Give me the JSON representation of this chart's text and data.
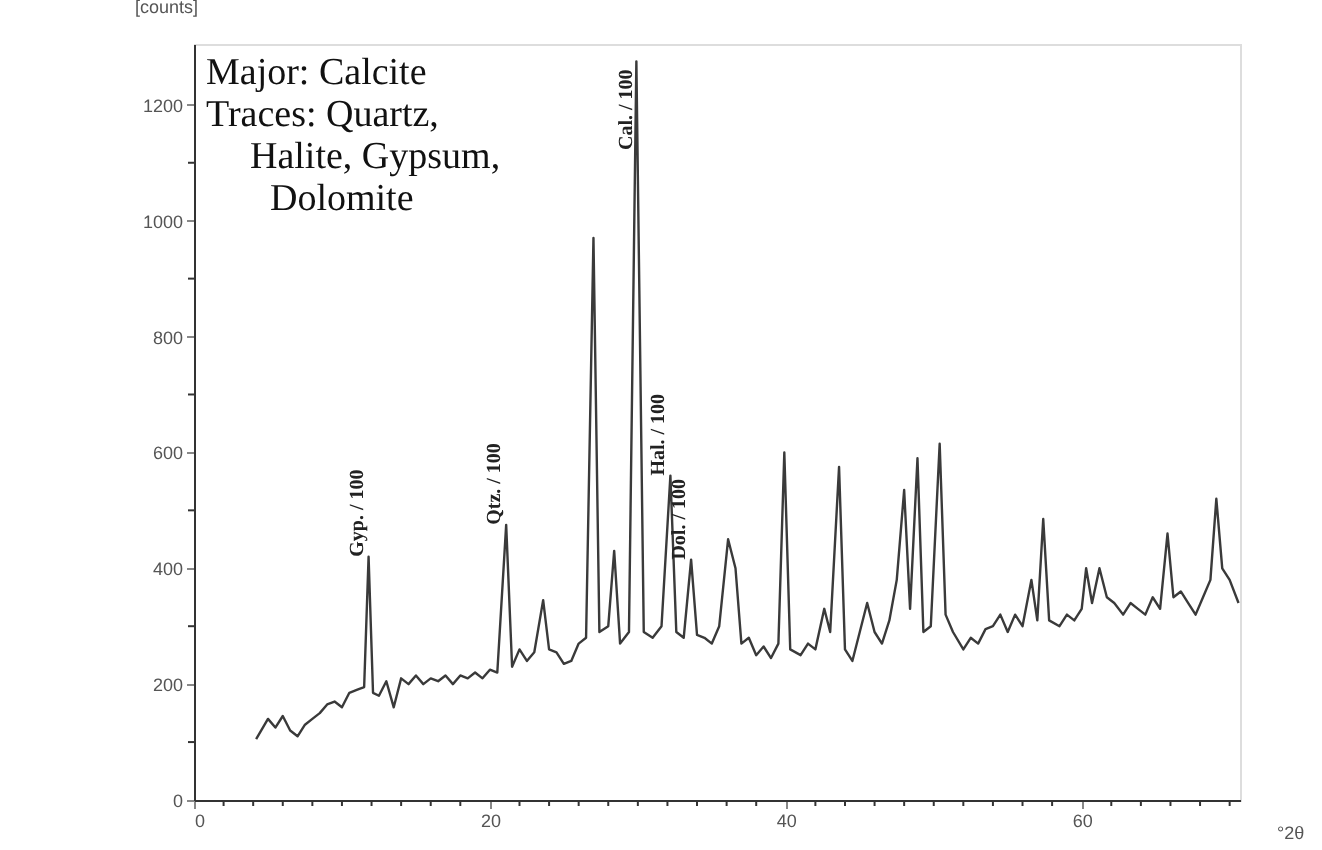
{
  "chart_data": {
    "type": "line",
    "xlabel": "°2θ",
    "ylabel": "[counts]",
    "xlim": [
      0,
      70.7
    ],
    "ylim": [
      0,
      1305
    ],
    "xticks": [
      0,
      {
        "value": 2,
        "label": null
      },
      {
        "value": 4,
        "label": null
      },
      {
        "value": 6,
        "label": null
      },
      {
        "value": 8,
        "label": null
      },
      {
        "value": 10,
        "label": null
      },
      {
        "value": 12,
        "label": null
      },
      {
        "value": 14,
        "label": null
      },
      {
        "value": 16,
        "label": null
      },
      {
        "value": 18,
        "label": null
      },
      20,
      {
        "value": 22,
        "label": null
      },
      {
        "value": 24,
        "label": null
      },
      {
        "value": 26,
        "label": null
      },
      {
        "value": 28,
        "label": null
      },
      {
        "value": 30,
        "label": null
      },
      {
        "value": 32,
        "label": null
      },
      {
        "value": 34,
        "label": null
      },
      {
        "value": 36,
        "label": null
      },
      {
        "value": 38,
        "label": null
      },
      40,
      {
        "value": 42,
        "label": null
      },
      {
        "value": 44,
        "label": null
      },
      {
        "value": 46,
        "label": null
      },
      {
        "value": 48,
        "label": null
      },
      {
        "value": 50,
        "label": null
      },
      {
        "value": 52,
        "label": null
      },
      {
        "value": 54,
        "label": null
      },
      {
        "value": 56,
        "label": null
      },
      {
        "value": 58,
        "label": null
      },
      60,
      {
        "value": 62,
        "label": null
      },
      {
        "value": 64,
        "label": null
      },
      {
        "value": 66,
        "label": null
      },
      {
        "value": 68,
        "label": null
      },
      {
        "value": 70,
        "label": null
      }
    ],
    "yticks": [
      0,
      {
        "value": 100,
        "label": null
      },
      200,
      {
        "value": 300,
        "label": null
      },
      400,
      {
        "value": 500,
        "label": null
      },
      600,
      {
        "value": 700,
        "label": null
      },
      800,
      {
        "value": 900,
        "label": null
      },
      1000,
      {
        "value": 1100,
        "label": null
      },
      1200
    ],
    "grid": false,
    "marker": "none",
    "line_style": "solid",
    "series": [
      {
        "color": "#3a3a3a",
        "x": [
          4.2,
          5,
          5.5,
          6,
          6.5,
          7,
          7.5,
          8,
          8.5,
          9,
          9.5,
          10,
          10.5,
          11,
          11.5,
          11.8,
          12.1,
          12.5,
          13,
          13.5,
          14,
          14.5,
          15,
          15.5,
          16,
          16.5,
          17,
          17.5,
          18,
          18.5,
          19,
          19.5,
          20,
          20.5,
          21.1,
          21.5,
          22,
          22.5,
          23,
          23.6,
          24,
          24.5,
          25,
          25.5,
          26,
          26.5,
          27.0,
          27.4,
          28,
          28.4,
          28.8,
          29.4,
          29.9,
          30.4,
          31,
          31.6,
          32.2,
          32.6,
          33.1,
          33.6,
          34,
          34.5,
          35,
          35.5,
          36.1,
          36.6,
          37,
          37.5,
          38,
          38.5,
          39,
          39.5,
          39.9,
          40.3,
          41,
          41.5,
          42,
          42.6,
          43,
          43.6,
          44,
          44.5,
          45,
          45.5,
          46,
          46.5,
          47,
          47.5,
          48,
          48.4,
          48.9,
          49.3,
          49.8,
          50.4,
          50.8,
          51.3,
          52,
          52.5,
          53,
          53.5,
          54,
          54.5,
          55,
          55.5,
          56,
          56.6,
          57,
          57.4,
          57.8,
          58.5,
          59,
          59.5,
          60,
          60.3,
          60.7,
          61.2,
          61.7,
          62.2,
          62.8,
          63.3,
          63.8,
          64.3,
          64.8,
          65.3,
          65.8,
          66.2,
          66.7,
          67.2,
          67.7,
          68.2,
          68.7,
          69.1,
          69.5,
          70,
          70.6
        ],
        "values": [
          105,
          140,
          125,
          145,
          120,
          110,
          130,
          140,
          150,
          165,
          170,
          160,
          185,
          190,
          195,
          420,
          185,
          180,
          205,
          160,
          210,
          200,
          215,
          200,
          210,
          205,
          215,
          200,
          215,
          210,
          220,
          210,
          225,
          220,
          475,
          230,
          260,
          240,
          255,
          345,
          260,
          255,
          235,
          240,
          270,
          280,
          970,
          290,
          300,
          430,
          270,
          290,
          1275,
          290,
          280,
          300,
          560,
          290,
          280,
          415,
          285,
          280,
          270,
          300,
          450,
          400,
          270,
          280,
          250,
          265,
          245,
          270,
          600,
          260,
          250,
          270,
          260,
          330,
          290,
          575,
          260,
          240,
          290,
          340,
          290,
          270,
          310,
          380,
          535,
          330,
          590,
          290,
          300,
          615,
          320,
          290,
          260,
          280,
          270,
          295,
          300,
          320,
          290,
          320,
          300,
          380,
          310,
          485,
          310,
          300,
          320,
          310,
          330,
          400,
          340,
          400,
          350,
          340,
          320,
          340,
          330,
          320,
          350,
          330,
          460,
          350,
          360,
          340,
          320,
          350,
          380,
          520,
          400,
          380,
          340
        ]
      }
    ],
    "annotations": [
      "Major: Calcite",
      "Traces: Quartz, Halite, Gypsum, Dolomite",
      {
        "text": "Gyp. / 100",
        "x": 11.8,
        "y": 420
      },
      {
        "text": "Qtz. / 100",
        "x": 21.1,
        "y": 475
      },
      {
        "text": "Cal. / 100",
        "x": 29.9,
        "y": 1275
      },
      {
        "text": "Hal. / 100",
        "x": 32.2,
        "y": 560
      },
      {
        "text": "Dol. / 100",
        "x": 33.6,
        "y": 415
      }
    ]
  }
}
